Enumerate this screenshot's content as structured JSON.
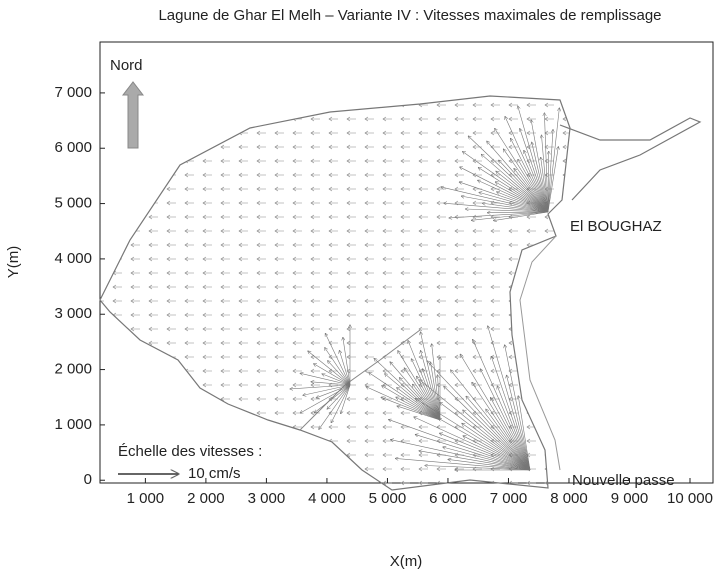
{
  "chart_data": {
    "type": "vector-field",
    "title": "Lagune de Ghar El Melh – Variante IV : Vitesses maximales de remplissage",
    "x_label": "X(m)",
    "y_label": "Y(m)",
    "xlim": [
      250,
      10380
    ],
    "ylim": [
      -50,
      7920
    ],
    "xticks": [
      {
        "value": 1000,
        "label": "1 000"
      },
      {
        "value": 2000,
        "label": "2 000"
      },
      {
        "value": 3000,
        "label": "3 000"
      },
      {
        "value": 4000,
        "label": "4 000"
      },
      {
        "value": 5000,
        "label": "5 000"
      },
      {
        "value": 6000,
        "label": "6 000"
      },
      {
        "value": 7000,
        "label": "7 000"
      },
      {
        "value": 8000,
        "label": "8 000"
      },
      {
        "value": 9000,
        "label": "9 000"
      },
      {
        "value": 10000,
        "label": "10 000"
      }
    ],
    "yticks": [
      0,
      {
        "value": 1000,
        "label": "1 000"
      },
      {
        "value": 2000,
        "label": "2 000"
      },
      {
        "value": 3000,
        "label": "3 000"
      },
      {
        "value": 4000,
        "label": "4 000"
      },
      {
        "value": 5000,
        "label": "5 000"
      },
      {
        "value": 6000,
        "label": "6 000"
      },
      {
        "value": 7000,
        "label": "7 000"
      }
    ],
    "annotations": {
      "north": "Nord",
      "inlet_1": "El BOUGHAZ",
      "inlet_2": "Nouvelle passe",
      "scale_title": "Échelle des vitesses :",
      "scale_value": "10 cm/s"
    }
  }
}
